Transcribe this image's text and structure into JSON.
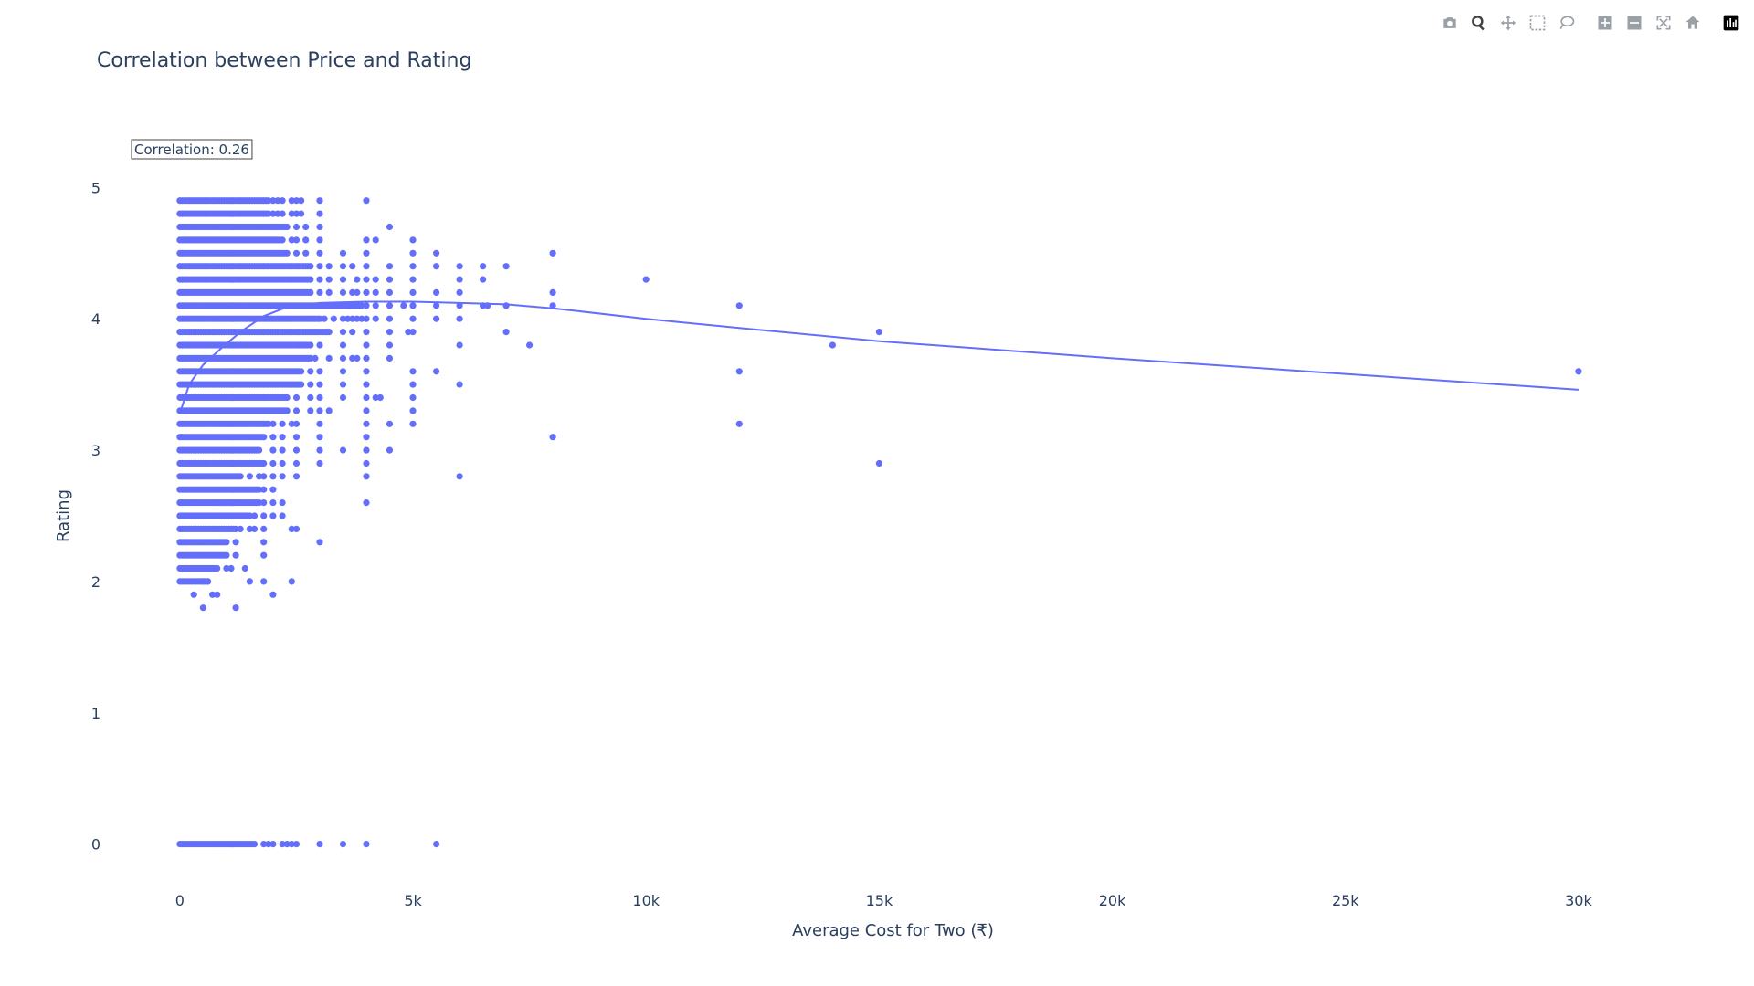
{
  "modebar": {
    "buttons": [
      "camera-icon",
      "zoom-icon",
      "pan-icon",
      "box-select-icon",
      "lasso-select-icon",
      "zoom-in-icon",
      "zoom-out-icon",
      "autoscale-icon",
      "reset-axes-icon",
      "plotly-logo-icon"
    ]
  },
  "chart_data": {
    "type": "scatter",
    "title": "Correlation between Price and Rating",
    "xlabel": "Average Cost for Two (₹)",
    "ylabel": "Rating",
    "xlim": [
      -1800,
      32000
    ],
    "ylim": [
      -0.35,
      5.35
    ],
    "x_ticks": [
      0,
      5000,
      10000,
      15000,
      20000,
      25000,
      30000
    ],
    "x_tick_labels": [
      "0",
      "5k",
      "10k",
      "15k",
      "20k",
      "25k",
      "30k"
    ],
    "y_ticks": [
      0,
      1,
      2,
      3,
      4,
      5
    ],
    "y_tick_labels": [
      "0",
      "1",
      "2",
      "3",
      "4",
      "5"
    ],
    "annotation": "Correlation: 0.26",
    "grid": false,
    "marker_color": "#636efa",
    "series": [
      {
        "type": "scatter",
        "note": "dense columns of restaurant points: each row is a rating level with the x values observed",
        "rows": [
          {
            "y": 4.9,
            "x_dense_max": 1900,
            "x_extra": [
              2000,
              2100,
              2200,
              2400,
              2500,
              2600,
              3000,
              4000
            ]
          },
          {
            "y": 4.8,
            "x_dense_max": 1900,
            "x_extra": [
              2000,
              2100,
              2200,
              2400,
              2500,
              2600,
              3000
            ]
          },
          {
            "y": 4.7,
            "x_dense_max": 2300,
            "x_extra": [
              2500,
              2700,
              3000,
              4500
            ]
          },
          {
            "y": 4.6,
            "x_dense_max": 2200,
            "x_extra": [
              2400,
              2500,
              2700,
              3000,
              4000,
              4200,
              5000
            ]
          },
          {
            "y": 4.5,
            "x_dense_max": 2300,
            "x_extra": [
              2500,
              2700,
              3000,
              3500,
              4000,
              5000,
              5500,
              8000
            ]
          },
          {
            "y": 4.4,
            "x_dense_max": 2800,
            "x_extra": [
              3000,
              3200,
              3500,
              3700,
              4000,
              4500,
              5000,
              5500,
              6000,
              6500,
              7000
            ]
          },
          {
            "y": 4.3,
            "x_dense_max": 2800,
            "x_extra": [
              3000,
              3200,
              3500,
              3800,
              4000,
              4200,
              4500,
              5000,
              6000,
              6500,
              10000
            ]
          },
          {
            "y": 4.2,
            "x_dense_max": 2800,
            "x_extra": [
              3000,
              3200,
              3500,
              3700,
              3800,
              4000,
              4200,
              4500,
              5000,
              5500,
              6000,
              8000
            ]
          },
          {
            "y": 4.1,
            "x_dense_max": 3900,
            "x_extra": [
              4000,
              4200,
              4500,
              4800,
              5000,
              5500,
              6000,
              6500,
              6600,
              7000,
              8000,
              12000
            ]
          },
          {
            "y": 4.0,
            "x_dense_max": 3000,
            "x_extra": [
              3100,
              3300,
              3500,
              3600,
              3700,
              3800,
              3900,
              4000,
              4200,
              4500,
              5000,
              5500,
              6000
            ]
          },
          {
            "y": 3.9,
            "x_dense_max": 3200,
            "x_extra": [
              3500,
              3700,
              4000,
              4500,
              4900,
              5000,
              7000,
              15000
            ]
          },
          {
            "y": 3.8,
            "x_dense_max": 2800,
            "x_extra": [
              3000,
              3500,
              4000,
              4500,
              6000,
              7500,
              14000
            ]
          },
          {
            "y": 3.7,
            "x_dense_max": 2800,
            "x_extra": [
              2900,
              3200,
              3500,
              3700,
              3800,
              4000,
              4500
            ]
          },
          {
            "y": 3.6,
            "x_dense_max": 2600,
            "x_extra": [
              2800,
              3000,
              3500,
              4000,
              5000,
              5500,
              12000,
              30000
            ]
          },
          {
            "y": 3.5,
            "x_dense_max": 2600,
            "x_extra": [
              2800,
              3000,
              3500,
              4000,
              5000,
              6000
            ]
          },
          {
            "y": 3.4,
            "x_dense_max": 2300,
            "x_extra": [
              2500,
              2800,
              3000,
              3500,
              4000,
              4200,
              4300,
              5000
            ]
          },
          {
            "y": 3.3,
            "x_dense_max": 2300,
            "x_extra": [
              2500,
              2800,
              3000,
              3200,
              4000,
              5000
            ]
          },
          {
            "y": 3.2,
            "x_dense_max": 1900,
            "x_extra": [
              2000,
              2200,
              2400,
              2500,
              3000,
              4000,
              4500,
              5000,
              12000
            ]
          },
          {
            "y": 3.1,
            "x_dense_max": 1800,
            "x_extra": [
              2000,
              2200,
              2500,
              3000,
              4000,
              8000
            ]
          },
          {
            "y": 3.0,
            "x_dense_max": 1700,
            "x_extra": [
              2000,
              2200,
              2500,
              3000,
              3500,
              4000,
              4500
            ]
          },
          {
            "y": 2.9,
            "x_dense_max": 1800,
            "x_extra": [
              2000,
              2200,
              2500,
              3000,
              4000,
              15000
            ]
          },
          {
            "y": 2.8,
            "x_dense_max": 1300,
            "x_extra": [
              1500,
              1700,
              1800,
              2000,
              2200,
              2500,
              4000,
              6000
            ]
          },
          {
            "y": 2.7,
            "x_dense_max": 1700,
            "x_extra": [
              1800,
              2000
            ]
          },
          {
            "y": 2.6,
            "x_dense_max": 1700,
            "x_extra": [
              1800,
              2000,
              2200,
              4000
            ]
          },
          {
            "y": 2.5,
            "x_dense_max": 1500,
            "x_extra": [
              1600,
              1800,
              2000,
              2200
            ]
          },
          {
            "y": 2.4,
            "x_dense_max": 1200,
            "x_extra": [
              1300,
              1500,
              1600,
              1800,
              2400,
              2500
            ]
          },
          {
            "y": 2.3,
            "x_dense_max": 1000,
            "x_extra": [
              1200,
              1800,
              3000
            ]
          },
          {
            "y": 2.2,
            "x_dense_max": 1000,
            "x_extra": [
              1200,
              1800
            ]
          },
          {
            "y": 2.1,
            "x_dense_max": 800,
            "x_extra": [
              1000,
              1100,
              1400
            ]
          },
          {
            "y": 2.0,
            "x_dense_max": 600,
            "x_extra": [
              500,
              600,
              1500,
              1800,
              2400
            ]
          },
          {
            "y": 1.9,
            "x_dense_max": 0,
            "x_extra": [
              300,
              700,
              800,
              2000
            ]
          },
          {
            "y": 1.8,
            "x_dense_max": 0,
            "x_extra": [
              500,
              1200
            ]
          },
          {
            "y": 0.0,
            "x_dense_max": 1600,
            "x_extra": [
              1800,
              1900,
              2000,
              2200,
              2300,
              2400,
              2500,
              3000,
              3500,
              4000,
              5500
            ]
          }
        ]
      },
      {
        "type": "line",
        "note": "trend line (lowess)",
        "x": [
          0,
          200,
          500,
          900,
          1300,
          1800,
          2300,
          3000,
          4000,
          5000,
          6000,
          7000,
          8000,
          10000,
          12000,
          15000,
          20000,
          25000,
          30000
        ],
        "y": [
          3.28,
          3.5,
          3.65,
          3.78,
          3.9,
          4.02,
          4.09,
          4.12,
          4.13,
          4.13,
          4.12,
          4.11,
          4.08,
          4.0,
          3.93,
          3.83,
          3.7,
          3.58,
          3.46
        ]
      }
    ]
  }
}
